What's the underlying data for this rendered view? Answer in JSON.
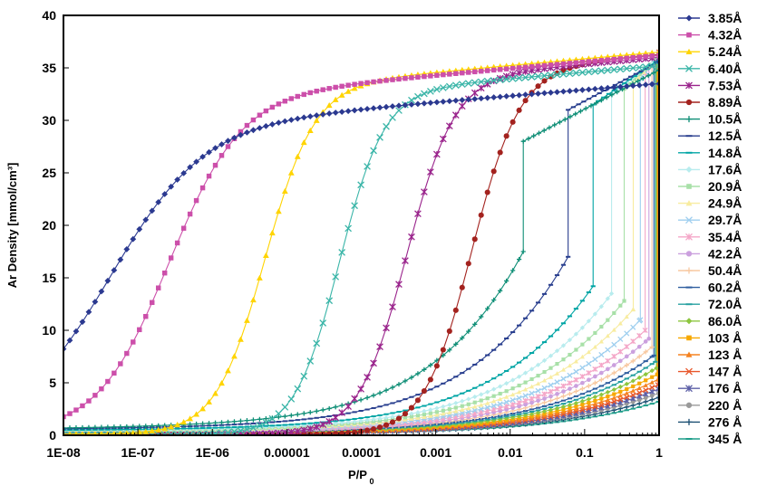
{
  "chart_data": {
    "type": "scatter",
    "title": "",
    "xlabel": "P/P",
    "xlabel_subscript": "0",
    "ylabel": "Ar Density [mmol/cm³]",
    "xscale": "log",
    "xlim": [
      1e-08,
      1
    ],
    "ylim": [
      0,
      40
    ],
    "grid": false,
    "legend_position": "right",
    "x_tick_labels": [
      "1E-08",
      "1E-07",
      "1E-06",
      "0.00001",
      "0.0001",
      "0.001",
      "0.01",
      "0.1",
      "1"
    ],
    "x_ticks": [
      1e-08,
      1e-07,
      1e-06,
      1e-05,
      0.0001,
      0.001,
      0.01,
      0.1,
      1
    ],
    "y_ticks": [
      0,
      5,
      10,
      15,
      20,
      25,
      30,
      35,
      40
    ],
    "series": [
      {
        "name": "3.85Å",
        "color": "#2B3990",
        "marker": "diamond",
        "x50": 4e-08,
        "width": 0.62,
        "plateau": 33.5,
        "base": 0.5,
        "pj": null
      },
      {
        "name": "4.32Å",
        "color": "#CC4FAA",
        "marker": "square",
        "x50": 2.5e-07,
        "width": 0.48,
        "plateau": 36.2,
        "base": 0.2,
        "pj": null
      },
      {
        "name": "5.24Å",
        "color": "#FFD400",
        "marker": "triangle",
        "x50": 5e-06,
        "width": 0.33,
        "plateau": 36.5,
        "base": 0.1,
        "pj": null
      },
      {
        "name": "6.40Å",
        "color": "#3AB5A8",
        "marker": "x",
        "x50": 5e-05,
        "width": 0.3,
        "plateau": 35.2,
        "base": 0.05,
        "pj": null
      },
      {
        "name": "7.53Å",
        "color": "#9A248C",
        "marker": "star",
        "x50": 0.0004,
        "width": 0.32,
        "plateau": 36.0,
        "base": 0.05,
        "pj": null
      },
      {
        "name": "8.89Å",
        "color": "#A3221E",
        "marker": "circle",
        "x50": 0.003,
        "width": 0.32,
        "plateau": 36.3,
        "base": 0.05,
        "pj": null
      },
      {
        "name": "10.5Å",
        "color": "#0E8E76",
        "marker": "plus",
        "pj": 0.015,
        "pre": 17.5,
        "post": 28.0,
        "top": 34.8
      },
      {
        "name": "12.5Å",
        "color": "#283E8E",
        "marker": "dash",
        "pj": 0.06,
        "pre": 17.0,
        "post": 31.0,
        "top": 35.6
      },
      {
        "name": "14.8Å",
        "color": "#00A5A5",
        "marker": "dash",
        "pj": 0.13,
        "pre": 14.2,
        "post": 31.5,
        "top": 35.8
      },
      {
        "name": "17.6Å",
        "color": "#B8ECEE",
        "marker": "diamond",
        "pj": 0.23,
        "pre": 13.5,
        "post": 32.5,
        "top": 36.0
      },
      {
        "name": "20.9Å",
        "color": "#A8E0A8",
        "marker": "square",
        "pj": 0.34,
        "pre": 12.8,
        "post": 33.0,
        "top": 36.1
      },
      {
        "name": "24.9Å",
        "color": "#F8ECA0",
        "marker": "triangle",
        "pj": 0.45,
        "pre": 12.0,
        "post": 33.5,
        "top": 36.2
      },
      {
        "name": "29.7Å",
        "color": "#9FCFEF",
        "marker": "x",
        "pj": 0.56,
        "pre": 11.0,
        "post": 34.0,
        "top": 36.3
      },
      {
        "name": "35.4Å",
        "color": "#F4A7C8",
        "marker": "star",
        "pj": 0.65,
        "pre": 10.0,
        "post": 34.5,
        "top": 36.4
      },
      {
        "name": "42.2Å",
        "color": "#CBA0DE",
        "marker": "circle",
        "pj": 0.73,
        "pre": 9.2,
        "post": 35.0,
        "top": 36.4
      },
      {
        "name": "50.4Å",
        "color": "#F8C8A0",
        "marker": "plus",
        "pj": 0.8,
        "pre": 8.4,
        "post": 35.2,
        "top": 36.4
      },
      {
        "name": "60.2Å",
        "color": "#2F5E9F",
        "marker": "dash",
        "pj": 0.85,
        "pre": 7.6,
        "post": 35.4,
        "top": 36.4
      },
      {
        "name": "72.0Å",
        "color": "#26A0A0",
        "marker": "dash",
        "pj": 0.89,
        "pre": 7.0,
        "post": 35.5,
        "top": 36.4
      },
      {
        "name": "86.0Å",
        "color": "#8DC63F",
        "marker": "diamond",
        "pj": 0.92,
        "pre": 6.4,
        "post": 35.6,
        "top": 36.5
      },
      {
        "name": "103 Å",
        "color": "#F7A800",
        "marker": "square",
        "pj": 0.94,
        "pre": 5.8,
        "post": 35.7,
        "top": 36.5
      },
      {
        "name": "123 Å",
        "color": "#F58220",
        "marker": "triangle",
        "pj": 0.955,
        "pre": 5.3,
        "post": 35.8,
        "top": 36.5
      },
      {
        "name": "147 Å",
        "color": "#E8562A",
        "marker": "x",
        "pj": 0.965,
        "pre": 4.8,
        "post": 35.9,
        "top": 36.5
      },
      {
        "name": "176 Å",
        "color": "#5B5EA6",
        "marker": "star",
        "pj": 0.975,
        "pre": 4.4,
        "post": 36.0,
        "top": 36.5
      },
      {
        "name": "220 Å",
        "color": "#9A9A9A",
        "marker": "circle",
        "pj": 0.982,
        "pre": 4.0,
        "post": 36.1,
        "top": 36.5
      },
      {
        "name": "276 Å",
        "color": "#1B4F72",
        "marker": "plus",
        "pj": 0.988,
        "pre": 3.6,
        "post": 36.2,
        "top": 36.5
      },
      {
        "name": "345 Å",
        "color": "#1E9E8A",
        "marker": "dash",
        "pj": 0.993,
        "pre": 3.2,
        "post": 36.3,
        "top": 36.5
      }
    ]
  }
}
